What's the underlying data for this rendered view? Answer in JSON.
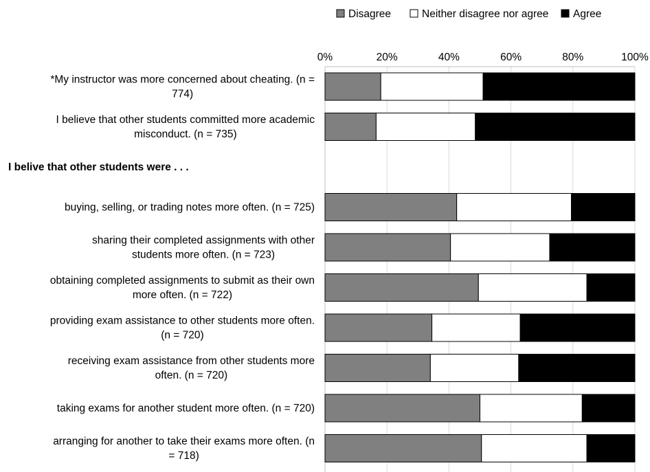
{
  "chart_data": {
    "type": "bar",
    "orientation": "horizontal",
    "stacked": "percent",
    "axis_position": "top",
    "xlim": [
      0,
      100
    ],
    "xticks": [
      "0%",
      "20%",
      "40%",
      "60%",
      "80%",
      "100%"
    ],
    "grid": true,
    "legend": {
      "placement": "top-right"
    },
    "series": [
      {
        "name": "Disagree",
        "color": "#808080"
      },
      {
        "name": "Neither disagree nor agree",
        "color": "#ffffff"
      },
      {
        "name": "Agree",
        "color": "#000000"
      }
    ],
    "rows": [
      {
        "type": "bar",
        "label": [
          "*My instructor was more concerned about cheating. (n =",
          "774)"
        ],
        "values": [
          18,
          33,
          49
        ]
      },
      {
        "type": "bar",
        "label": [
          "I believe that other students committed more academic",
          "misconduct. (n = 735)"
        ],
        "values": [
          16.5,
          32,
          51.5
        ]
      },
      {
        "type": "heading",
        "label": [
          "I belive that other students were . . ."
        ]
      },
      {
        "type": "bar",
        "label": [
          "buying, selling, or trading notes more often. (n = 725)"
        ],
        "values": [
          42.5,
          37,
          20.5
        ]
      },
      {
        "type": "bar",
        "label": [
          "sharing their completed assignments with other",
          "students more often. (n = 723)"
        ],
        "values": [
          40.5,
          32,
          27.5
        ]
      },
      {
        "type": "bar",
        "label": [
          "obtaining completed assignments to submit as their own",
          "more often. (n = 722)"
        ],
        "values": [
          49.5,
          35,
          15.5
        ]
      },
      {
        "type": "bar",
        "label": [
          "providing exam assistance to other students more often.",
          "(n = 720)"
        ],
        "values": [
          34.5,
          28.5,
          37
        ]
      },
      {
        "type": "bar",
        "label": [
          "receiving exam assistance from other students more",
          "often. (n = 720)"
        ],
        "values": [
          34,
          28.5,
          37.5
        ]
      },
      {
        "type": "bar",
        "label": [
          "taking exams for another student more often. (n = 720)"
        ],
        "values": [
          50,
          33,
          17
        ]
      },
      {
        "type": "bar",
        "label": [
          "arranging for another to take their exams more often. (n",
          "= 718)"
        ],
        "values": [
          50.5,
          34,
          15.5
        ]
      }
    ]
  }
}
